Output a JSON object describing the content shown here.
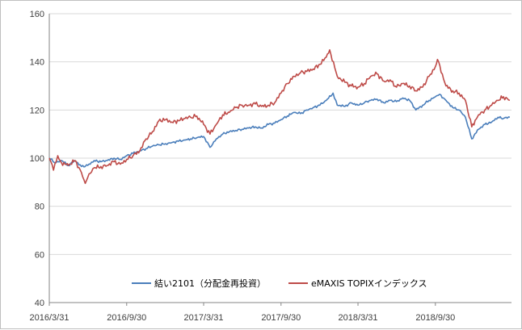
{
  "chart_data": {
    "type": "line",
    "x_tick_labels": [
      "2016/3/31",
      "2016/9/30",
      "2017/3/31",
      "2017/9/30",
      "2018/3/31",
      "2018/9/30"
    ],
    "y_ticks": [
      40,
      60,
      80,
      100,
      120,
      140,
      160
    ],
    "ylim": [
      40,
      160
    ],
    "grid": "horizontal",
    "legend_position": "bottom-inside",
    "series": [
      {
        "name": "結い2101（分配金再投資）",
        "color": "#4a7ebb",
        "points": [
          [
            "2016/3/31",
            100
          ],
          [
            "2016/4/15",
            98
          ],
          [
            "2016/4/29",
            99
          ],
          [
            "2016/5/15",
            97
          ],
          [
            "2016/5/31",
            99
          ],
          [
            "2016/6/15",
            96.5
          ],
          [
            "2016/6/30",
            97
          ],
          [
            "2016/7/15",
            99
          ],
          [
            "2016/7/31",
            98.5
          ],
          [
            "2016/8/15",
            99
          ],
          [
            "2016/8/31",
            100
          ],
          [
            "2016/9/15",
            99.5
          ],
          [
            "2016/9/30",
            101
          ],
          [
            "2016/10/15",
            102
          ],
          [
            "2016/10/31",
            103
          ],
          [
            "2016/11/15",
            104
          ],
          [
            "2016/11/30",
            105
          ],
          [
            "2016/12/15",
            105.5
          ],
          [
            "2016/12/31",
            106
          ],
          [
            "2017/1/15",
            106.5
          ],
          [
            "2017/1/31",
            107
          ],
          [
            "2017/2/15",
            107.5
          ],
          [
            "2017/2/28",
            108
          ],
          [
            "2017/3/15",
            108.5
          ],
          [
            "2017/3/31",
            109
          ],
          [
            "2017/4/15",
            104.5
          ],
          [
            "2017/4/30",
            108
          ],
          [
            "2017/5/15",
            110
          ],
          [
            "2017/5/31",
            111
          ],
          [
            "2017/6/15",
            111.5
          ],
          [
            "2017/6/30",
            112
          ],
          [
            "2017/7/15",
            112.5
          ],
          [
            "2017/7/31",
            113
          ],
          [
            "2017/8/15",
            112.5
          ],
          [
            "2017/8/31",
            114
          ],
          [
            "2017/9/15",
            114.5
          ],
          [
            "2017/9/30",
            116
          ],
          [
            "2017/10/15",
            117.5
          ],
          [
            "2017/10/31",
            119
          ],
          [
            "2017/11/15",
            118.5
          ],
          [
            "2017/11/30",
            120
          ],
          [
            "2017/12/15",
            121
          ],
          [
            "2017/12/31",
            122
          ],
          [
            "2018/1/15",
            124
          ],
          [
            "2018/1/31",
            127
          ],
          [
            "2018/2/10",
            122
          ],
          [
            "2018/2/28",
            121.5
          ],
          [
            "2018/3/15",
            123
          ],
          [
            "2018/3/31",
            122
          ],
          [
            "2018/4/15",
            123
          ],
          [
            "2018/4/30",
            124
          ],
          [
            "2018/5/15",
            124.5
          ],
          [
            "2018/5/31",
            123
          ],
          [
            "2018/6/15",
            124
          ],
          [
            "2018/6/30",
            123.5
          ],
          [
            "2018/7/15",
            125
          ],
          [
            "2018/7/31",
            124
          ],
          [
            "2018/8/15",
            120
          ],
          [
            "2018/8/31",
            122
          ],
          [
            "2018/9/15",
            124
          ],
          [
            "2018/9/30",
            125.5
          ],
          [
            "2018/10/10",
            126.5
          ],
          [
            "2018/10/25",
            124
          ],
          [
            "2018/11/10",
            121
          ],
          [
            "2018/11/25",
            120
          ],
          [
            "2018/12/10",
            117
          ],
          [
            "2018/12/25",
            108
          ],
          [
            "2019/1/10",
            112
          ],
          [
            "2019/1/25",
            114
          ],
          [
            "2019/2/10",
            115
          ],
          [
            "2019/2/25",
            117
          ],
          [
            "2019/3/10",
            116.5
          ],
          [
            "2019/3/25",
            117
          ]
        ]
      },
      {
        "name": "eMAXIS TOPIXインデックス",
        "color": "#be4b48",
        "points": [
          [
            "2016/3/31",
            100
          ],
          [
            "2016/4/10",
            95
          ],
          [
            "2016/4/20",
            101
          ],
          [
            "2016/4/29",
            98
          ],
          [
            "2016/5/15",
            97
          ],
          [
            "2016/5/31",
            99
          ],
          [
            "2016/6/15",
            94
          ],
          [
            "2016/6/24",
            89.5
          ],
          [
            "2016/6/30",
            92
          ],
          [
            "2016/7/15",
            96
          ],
          [
            "2016/7/31",
            96.5
          ],
          [
            "2016/8/15",
            97
          ],
          [
            "2016/8/31",
            98.5
          ],
          [
            "2016/9/15",
            97.5
          ],
          [
            "2016/9/30",
            99.5
          ],
          [
            "2016/10/15",
            101
          ],
          [
            "2016/10/31",
            103
          ],
          [
            "2016/11/15",
            108
          ],
          [
            "2016/11/30",
            111
          ],
          [
            "2016/12/15",
            115.5
          ],
          [
            "2016/12/31",
            116
          ],
          [
            "2017/1/15",
            115
          ],
          [
            "2017/1/31",
            115.5
          ],
          [
            "2017/2/15",
            116.5
          ],
          [
            "2017/2/28",
            117
          ],
          [
            "2017/3/15",
            117.5
          ],
          [
            "2017/3/31",
            114
          ],
          [
            "2017/4/15",
            110
          ],
          [
            "2017/4/30",
            114
          ],
          [
            "2017/5/15",
            118
          ],
          [
            "2017/5/31",
            119
          ],
          [
            "2017/6/15",
            121
          ],
          [
            "2017/6/30",
            122
          ],
          [
            "2017/7/15",
            122
          ],
          [
            "2017/7/31",
            122.5
          ],
          [
            "2017/8/15",
            121.5
          ],
          [
            "2017/8/31",
            122
          ],
          [
            "2017/9/15",
            123
          ],
          [
            "2017/9/30",
            127
          ],
          [
            "2017/10/15",
            131
          ],
          [
            "2017/10/31",
            134
          ],
          [
            "2017/11/15",
            135.5
          ],
          [
            "2017/11/30",
            136
          ],
          [
            "2017/12/15",
            137
          ],
          [
            "2017/12/31",
            139
          ],
          [
            "2018/1/15",
            142
          ],
          [
            "2018/1/23",
            145
          ],
          [
            "2018/2/10",
            134
          ],
          [
            "2018/2/28",
            131.5
          ],
          [
            "2018/3/15",
            130
          ],
          [
            "2018/3/31",
            129.5
          ],
          [
            "2018/4/15",
            131
          ],
          [
            "2018/4/30",
            134
          ],
          [
            "2018/5/15",
            135
          ],
          [
            "2018/5/31",
            132
          ],
          [
            "2018/6/15",
            132.5
          ],
          [
            "2018/6/30",
            129.5
          ],
          [
            "2018/7/15",
            131
          ],
          [
            "2018/7/31",
            130
          ],
          [
            "2018/8/15",
            128
          ],
          [
            "2018/8/31",
            129.5
          ],
          [
            "2018/9/15",
            134
          ],
          [
            "2018/9/30",
            138
          ],
          [
            "2018/10/5",
            141
          ],
          [
            "2018/10/25",
            130
          ],
          [
            "2018/11/10",
            128
          ],
          [
            "2018/11/25",
            127
          ],
          [
            "2018/12/10",
            124
          ],
          [
            "2018/12/25",
            113
          ],
          [
            "2019/1/10",
            118
          ],
          [
            "2019/1/25",
            120
          ],
          [
            "2019/2/10",
            122
          ],
          [
            "2019/2/25",
            124
          ],
          [
            "2019/3/10",
            125.5
          ],
          [
            "2019/3/25",
            124
          ]
        ]
      }
    ]
  }
}
